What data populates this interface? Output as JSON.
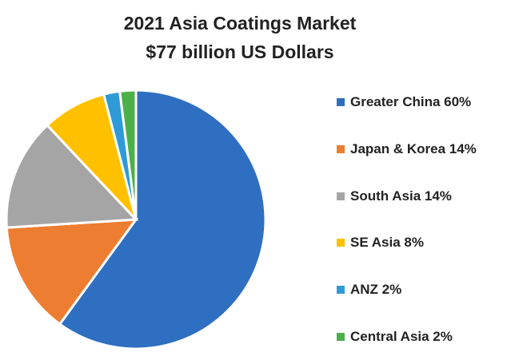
{
  "chart_data": {
    "type": "pie",
    "title": "2021 Asia Coatings Market",
    "subtitle": "$77 billion US Dollars",
    "categories": [
      "Greater China",
      "Japan & Korea",
      "South Asia",
      "SE Asia",
      "ANZ",
      "Central Asia"
    ],
    "values": [
      60,
      14,
      14,
      8,
      2,
      2
    ],
    "legend_labels": [
      "Greater China 60%",
      "Japan & Korea 14%",
      "South Asia 14%",
      "SE Asia 8%",
      "ANZ 2%",
      "Central Asia 2%"
    ],
    "colors": [
      "#2F6FC1",
      "#ED7D31",
      "#A5A5A5",
      "#FFC000",
      "#2E9AD8",
      "#4CB04A"
    ],
    "start": "top",
    "direction": "clockwise",
    "legend_position": "right"
  }
}
